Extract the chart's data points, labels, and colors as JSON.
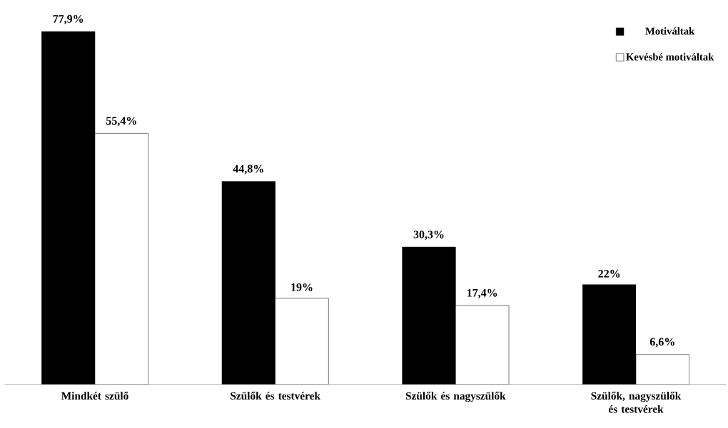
{
  "chart_data": {
    "type": "bar",
    "categories": [
      "Mindkét szülő",
      "Szülők és testvérek",
      "Szülők és nagyszülők",
      "Szülők, nagyszülők és testvérek"
    ],
    "series": [
      {
        "name": "Motiváltak",
        "color": "#000000",
        "values": [
          77.9,
          44.8,
          30.3,
          22
        ],
        "value_labels": [
          "77,9%",
          "44,8%",
          "30,3%",
          "22%"
        ]
      },
      {
        "name": "Kevésbé motiváltak",
        "color": "#ffffff",
        "values": [
          55.4,
          19,
          17.4,
          6.6
        ],
        "value_labels": [
          "55,4%",
          "19%",
          "17,4%",
          "6,6%"
        ]
      }
    ],
    "legend": "top right"
  }
}
